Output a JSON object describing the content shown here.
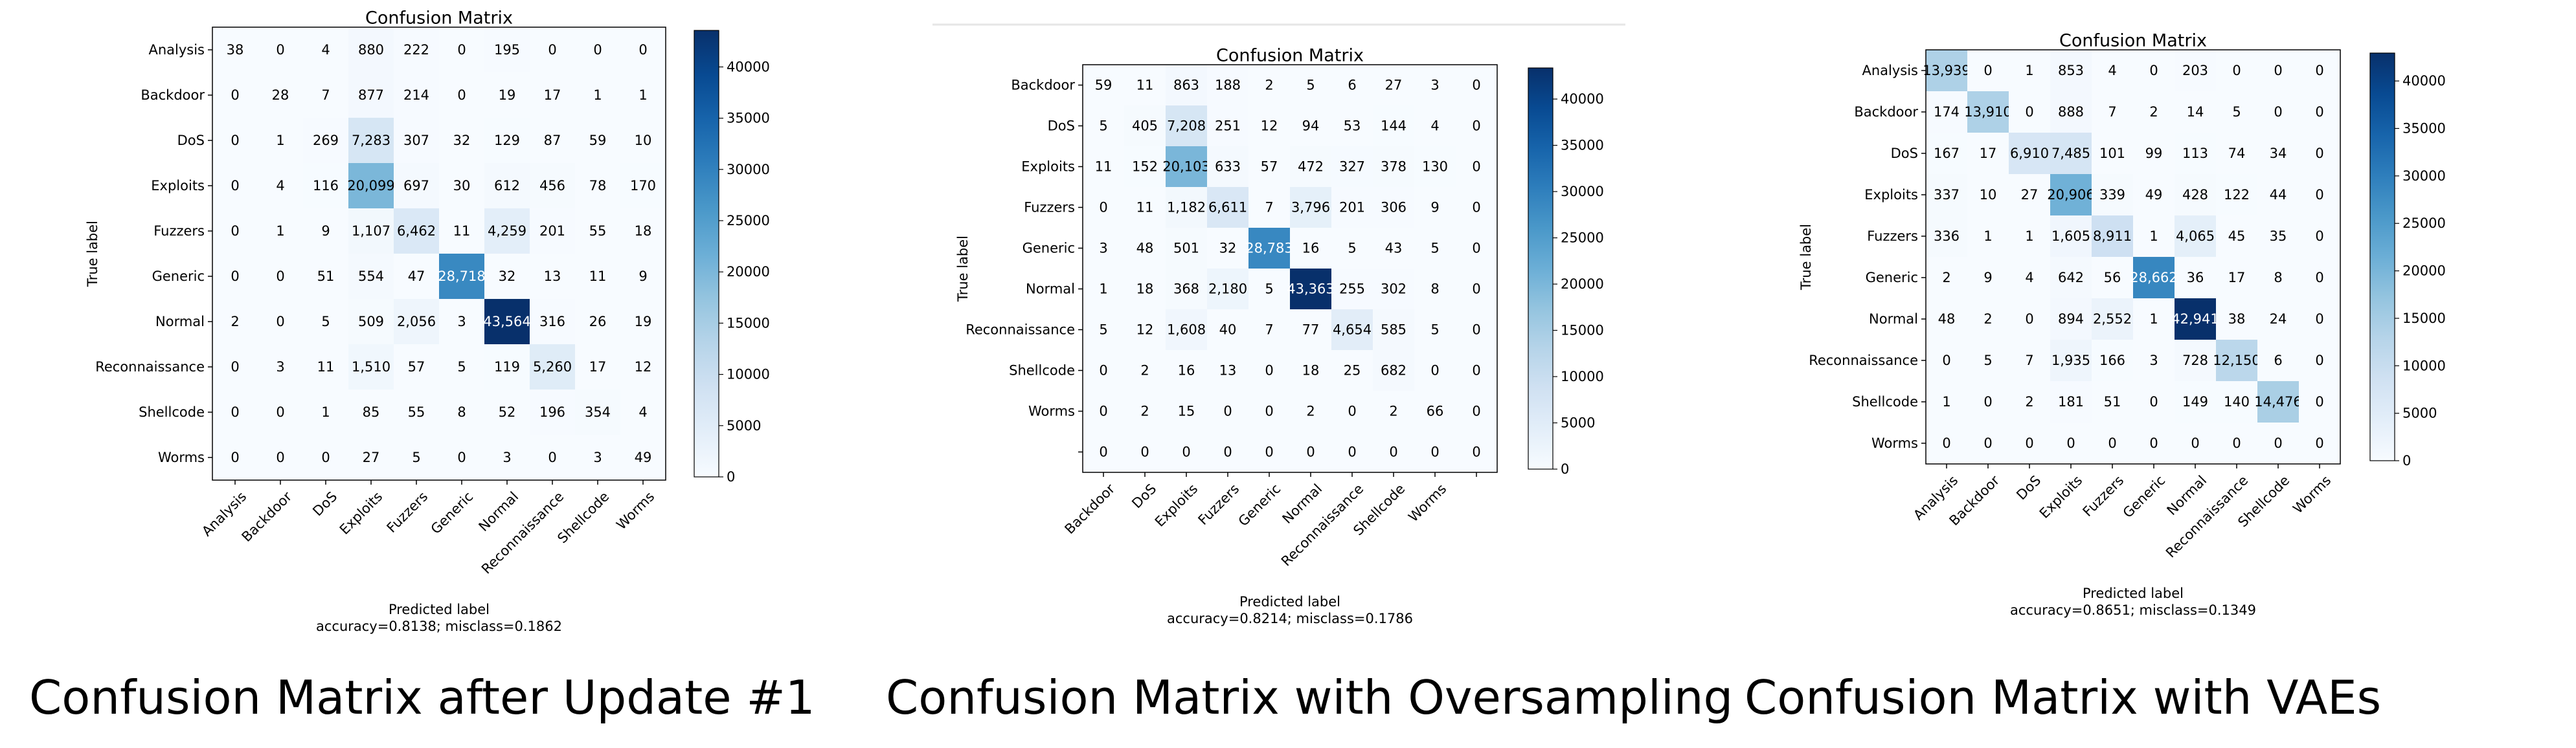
{
  "captions": [
    "Confusion Matrix after Update #1",
    "Confusion Matrix with Oversampling",
    "Confusion Matrix with VAEs"
  ],
  "chart_data": [
    {
      "type": "heatmap",
      "title": "Confusion Matrix",
      "xlabel": "Predicted label",
      "ylabel": "True label",
      "footer": "accuracy=0.8138; misclass=0.1862",
      "row_labels": [
        "Analysis",
        "Backdoor",
        "DoS",
        "Exploits",
        "Fuzzers",
        "Generic",
        "Normal",
        "Reconnaissance",
        "Shellcode",
        "Worms"
      ],
      "col_labels": [
        "Analysis",
        "Backdoor",
        "DoS",
        "Exploits",
        "Fuzzers",
        "Generic",
        "Normal",
        "Reconnaissance",
        "Shellcode",
        "Worms"
      ],
      "matrix": [
        [
          "38",
          "0",
          "4",
          "880",
          "222",
          "0",
          "195",
          "0",
          "0",
          "0"
        ],
        [
          "0",
          "28",
          "7",
          "877",
          "214",
          "0",
          "19",
          "17",
          "1",
          "1"
        ],
        [
          "0",
          "1",
          "269",
          "7,283",
          "307",
          "32",
          "129",
          "87",
          "59",
          "10"
        ],
        [
          "0",
          "4",
          "116",
          "20,099",
          "697",
          "30",
          "612",
          "456",
          "78",
          "170"
        ],
        [
          "0",
          "1",
          "9",
          "1,107",
          "6,462",
          "11",
          "4,259",
          "201",
          "55",
          "18"
        ],
        [
          "0",
          "0",
          "51",
          "554",
          "47",
          "28,718",
          "32",
          "13",
          "11",
          "9"
        ],
        [
          "2",
          "0",
          "5",
          "509",
          "2,056",
          "3",
          "43,564",
          "316",
          "26",
          "19"
        ],
        [
          "0",
          "3",
          "11",
          "1,510",
          "57",
          "5",
          "119",
          "5,260",
          "17",
          "12"
        ],
        [
          "0",
          "0",
          "1",
          "85",
          "55",
          "8",
          "52",
          "196",
          "354",
          "4"
        ],
        [
          "0",
          "0",
          "0",
          "27",
          "5",
          "0",
          "3",
          "0",
          "3",
          "49"
        ]
      ],
      "colorbar_ticks": [
        "0",
        "5000",
        "10000",
        "15000",
        "20000",
        "25000",
        "30000",
        "35000",
        "40000"
      ],
      "vmax": 43564
    },
    {
      "type": "heatmap",
      "title": "Confusion Matrix",
      "xlabel": "Predicted label",
      "ylabel": "True label",
      "footer": "accuracy=0.8214; misclass=0.1786",
      "row_labels": [
        "Backdoor",
        "DoS",
        "Exploits",
        "Fuzzers",
        "Generic",
        "Normal",
        "Reconnaissance",
        "Shellcode",
        "Worms",
        ""
      ],
      "col_labels": [
        "Backdoor",
        "DoS",
        "Exploits",
        "Fuzzers",
        "Generic",
        "Normal",
        "Reconnaissance",
        "Shellcode",
        "Worms",
        ""
      ],
      "matrix": [
        [
          "59",
          "11",
          "863",
          "188",
          "2",
          "5",
          "6",
          "27",
          "3",
          "0"
        ],
        [
          "5",
          "405",
          "7,208",
          "251",
          "12",
          "94",
          "53",
          "144",
          "4",
          "0"
        ],
        [
          "11",
          "152",
          "20,103",
          "633",
          "57",
          "472",
          "327",
          "378",
          "130",
          "0"
        ],
        [
          "0",
          "11",
          "1,182",
          "6,611",
          "7",
          "3,796",
          "201",
          "306",
          "9",
          "0"
        ],
        [
          "3",
          "48",
          "501",
          "32",
          "28,783",
          "16",
          "5",
          "43",
          "5",
          "0"
        ],
        [
          "1",
          "18",
          "368",
          "2,180",
          "5",
          "43,363",
          "255",
          "302",
          "8",
          "0"
        ],
        [
          "5",
          "12",
          "1,608",
          "40",
          "7",
          "77",
          "4,654",
          "585",
          "5",
          "0"
        ],
        [
          "0",
          "2",
          "16",
          "13",
          "0",
          "18",
          "25",
          "682",
          "0",
          "0"
        ],
        [
          "0",
          "2",
          "15",
          "0",
          "0",
          "2",
          "0",
          "2",
          "66",
          "0"
        ],
        [
          "0",
          "0",
          "0",
          "0",
          "0",
          "0",
          "0",
          "0",
          "0",
          "0"
        ]
      ],
      "colorbar_ticks": [
        "0",
        "5000",
        "10000",
        "15000",
        "20000",
        "25000",
        "30000",
        "35000",
        "40000"
      ],
      "vmax": 43363
    },
    {
      "type": "heatmap",
      "title": "Confusion Matrix",
      "xlabel": "Predicted label",
      "ylabel": "True label",
      "footer": "accuracy=0.8651; misclass=0.1349",
      "row_labels": [
        "Analysis",
        "Backdoor",
        "DoS",
        "Exploits",
        "Fuzzers",
        "Generic",
        "Normal",
        "Reconnaissance",
        "Shellcode",
        "Worms"
      ],
      "col_labels": [
        "Analysis",
        "Backdoor",
        "DoS",
        "Exploits",
        "Fuzzers",
        "Generic",
        "Normal",
        "Reconnaissance",
        "Shellcode",
        "Worms"
      ],
      "matrix": [
        [
          "13,939",
          "0",
          "1",
          "853",
          "4",
          "0",
          "203",
          "0",
          "0",
          "0"
        ],
        [
          "174",
          "13,910",
          "0",
          "888",
          "7",
          "2",
          "14",
          "5",
          "0",
          "0"
        ],
        [
          "167",
          "17",
          "6,910",
          "7,485",
          "101",
          "99",
          "113",
          "74",
          "34",
          "0"
        ],
        [
          "337",
          "10",
          "27",
          "20,906",
          "339",
          "49",
          "428",
          "122",
          "44",
          "0"
        ],
        [
          "336",
          "1",
          "1",
          "1,605",
          "8,911",
          "1",
          "4,065",
          "45",
          "35",
          "0"
        ],
        [
          "2",
          "9",
          "4",
          "642",
          "56",
          "28,662",
          "36",
          "17",
          "8",
          "0"
        ],
        [
          "48",
          "2",
          "0",
          "894",
          "2,552",
          "1",
          "42,941",
          "38",
          "24",
          "0"
        ],
        [
          "0",
          "5",
          "7",
          "1,935",
          "166",
          "3",
          "728",
          "12,150",
          "6",
          "0"
        ],
        [
          "1",
          "0",
          "2",
          "181",
          "51",
          "0",
          "149",
          "140",
          "14,476",
          "0"
        ],
        [
          "0",
          "0",
          "0",
          "0",
          "0",
          "0",
          "0",
          "0",
          "0",
          "0"
        ]
      ],
      "colorbar_ticks": [
        "0",
        "5000",
        "10000",
        "15000",
        "20000",
        "25000",
        "30000",
        "35000",
        "40000"
      ],
      "vmax": 42941
    }
  ]
}
